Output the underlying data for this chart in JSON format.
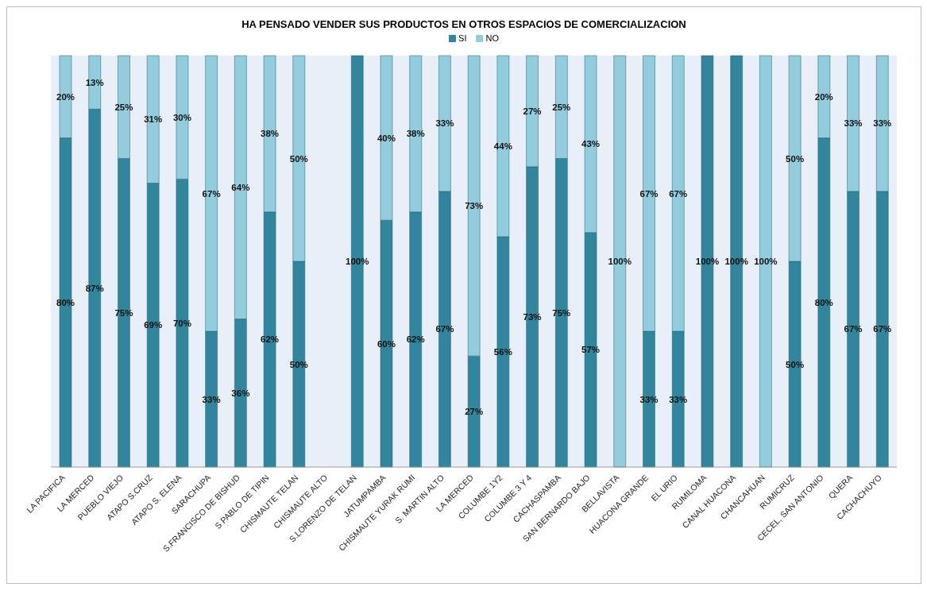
{
  "chart_data": {
    "type": "bar",
    "title": "HA PENSADO VENDER SUS PRODUCTOS EN OTROS ESPACIOS DE COMERCIALIZACION",
    "stacked": true,
    "legend": "top",
    "grid": false,
    "categories": [
      "LA PACIFICA",
      "LA MERCED",
      "PUEBLO VIEJO",
      "ATAPO S.CRUZ",
      "ATAPO S. ELENA",
      "SARACHUPA",
      "S.FRANCISCO DE BISHUD",
      "S PABLO DE TIPIN",
      "CHISMAUTE TELAN",
      "CHISMAUTE ALTO",
      "S.LORENZO DE TELAN",
      "JATUMPAMBA",
      "CHISMAUTE YURAK RUMI",
      "S. MARTIN ALTO",
      "LA MERCED",
      "COLUMBE 1Y2",
      "COLUMBE 3 Y 4",
      "CACHASPAMBA",
      "SAN BERNARDO BAJO",
      "BELLAVISTA",
      "HUACONA GRANDE",
      "EL URIO",
      "RUMILOMA",
      "CANAL HUACONA",
      "CHANCAHUAN",
      "RUMICRUZ",
      "CECEL, SAN ANTONIO",
      "QUERA",
      "CACHACHUYO"
    ],
    "series": [
      {
        "name": "SI",
        "color": "#31859c",
        "values": [
          80,
          87,
          75,
          69,
          70,
          33,
          36,
          62,
          50,
          null,
          100,
          60,
          62,
          67,
          27,
          56,
          73,
          75,
          57,
          0,
          33,
          33,
          100,
          100,
          0,
          50,
          80,
          67,
          67
        ],
        "value_labels": [
          "80%",
          "87%",
          "75%",
          "69%",
          "70%",
          "33%",
          "36%",
          "62%",
          "50%",
          null,
          "100%",
          "60%",
          "62%",
          "67%",
          "27%",
          "56%",
          "73%",
          "75%",
          "57%",
          null,
          "33%",
          "33%",
          "100%",
          "100%",
          null,
          "50%",
          "80%",
          "67%",
          "67%"
        ]
      },
      {
        "name": "NO",
        "color": "#93cddd",
        "values": [
          20,
          13,
          25,
          31,
          30,
          67,
          64,
          38,
          50,
          null,
          0,
          40,
          38,
          33,
          73,
          44,
          27,
          25,
          43,
          100,
          67,
          67,
          0,
          0,
          100,
          50,
          20,
          33,
          33
        ],
        "value_labels": [
          "20%",
          "13%",
          "25%",
          "31%",
          "30%",
          "67%",
          "64%",
          "38%",
          "50%",
          null,
          null,
          "40%",
          "38%",
          "33%",
          "73%",
          "44%",
          "27%",
          "25%",
          "43%",
          "100%",
          "67%",
          "67%",
          null,
          null,
          "100%",
          "50%",
          "20%",
          "33%",
          "33%"
        ]
      }
    ]
  }
}
